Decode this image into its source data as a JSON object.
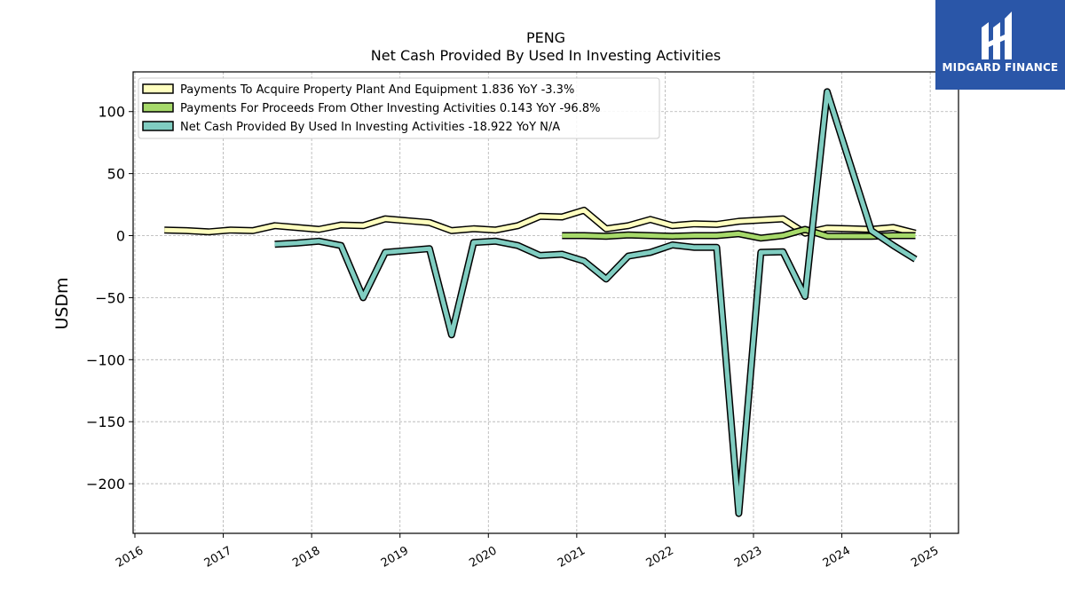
{
  "brand": {
    "name": "MIDGARD FINANCE",
    "bg_color": "#2a56a8"
  },
  "chart_data": {
    "type": "line",
    "title": "PENG",
    "subtitle": "Net Cash Provided By Used In Investing Activities",
    "ylabel": "USDm",
    "xlabel": "",
    "ylim": [
      -240,
      132
    ],
    "xlim": [
      2015.98,
      2025.32
    ],
    "yticks": [
      100,
      50,
      0,
      -50,
      -100,
      -150,
      -200
    ],
    "ytick_labels": [
      "100",
      "50",
      "0",
      "−50",
      "−100",
      "−150",
      "−200"
    ],
    "xticks": [
      "2016",
      "2017",
      "2018",
      "2019",
      "2020",
      "2021",
      "2022",
      "2023",
      "2024",
      "2025"
    ],
    "grid": true,
    "legend_position": "top-left",
    "series": [
      {
        "name": "Payments To Acquire Property Plant And Equipment",
        "legend_label": "Payments To Acquire Property Plant And Equipment  1.836 YoY -3.3%",
        "color": "#ffffbf",
        "points": [
          {
            "x": "2016-05",
            "y": 4.5
          },
          {
            "x": "2016-08",
            "y": 4.0
          },
          {
            "x": "2016-11",
            "y": 3.0
          },
          {
            "x": "2017-02",
            "y": 4.5
          },
          {
            "x": "2017-05",
            "y": 4.0
          },
          {
            "x": "2017-08",
            "y": 8.0
          },
          {
            "x": "2017-11",
            "y": 6.5
          },
          {
            "x": "2018-02",
            "y": 5.0
          },
          {
            "x": "2018-05",
            "y": 8.5
          },
          {
            "x": "2018-08",
            "y": 8.0
          },
          {
            "x": "2018-11",
            "y": 13.5
          },
          {
            "x": "2019-02",
            "y": 12.0
          },
          {
            "x": "2019-05",
            "y": 10.5
          },
          {
            "x": "2019-08",
            "y": 4.0
          },
          {
            "x": "2019-11",
            "y": 5.5
          },
          {
            "x": "2020-02",
            "y": 4.5
          },
          {
            "x": "2020-05",
            "y": 8.0
          },
          {
            "x": "2020-08",
            "y": 15.5
          },
          {
            "x": "2020-11",
            "y": 15.0
          },
          {
            "x": "2021-02",
            "y": 20.5
          },
          {
            "x": "2021-05",
            "y": 5.5
          },
          {
            "x": "2021-08",
            "y": 8.0
          },
          {
            "x": "2021-11",
            "y": 13.0
          },
          {
            "x": "2022-02",
            "y": 8.0
          },
          {
            "x": "2022-05",
            "y": 9.5
          },
          {
            "x": "2022-08",
            "y": 9.0
          },
          {
            "x": "2022-11",
            "y": 11.5
          },
          {
            "x": "2023-02",
            "y": 12.5
          },
          {
            "x": "2023-05",
            "y": 13.5
          },
          {
            "x": "2023-08",
            "y": 2.0
          },
          {
            "x": "2023-11",
            "y": 6.0
          },
          {
            "x": "2024-02",
            "y": 5.5
          },
          {
            "x": "2024-05",
            "y": 5.0
          },
          {
            "x": "2024-08",
            "y": 6.5
          },
          {
            "x": "2024-11",
            "y": 2.0
          }
        ]
      },
      {
        "name": "Payments For Proceeds From Other Investing Activities",
        "legend_label": "Payments For Proceeds From Other Investing Activities  0.143 YoY -96.8%",
        "color": "#a6d96a",
        "points": [
          {
            "x": "2020-11",
            "y": 0.0
          },
          {
            "x": "2021-02",
            "y": 0.0
          },
          {
            "x": "2021-05",
            "y": -0.5
          },
          {
            "x": "2021-08",
            "y": 0.5
          },
          {
            "x": "2021-11",
            "y": 0.0
          },
          {
            "x": "2022-02",
            "y": -0.5
          },
          {
            "x": "2022-05",
            "y": 0.0
          },
          {
            "x": "2022-08",
            "y": 0.0
          },
          {
            "x": "2022-11",
            "y": 1.5
          },
          {
            "x": "2023-02",
            "y": -2.0
          },
          {
            "x": "2023-05",
            "y": 0.0
          },
          {
            "x": "2023-08",
            "y": 5.0
          },
          {
            "x": "2023-11",
            "y": -0.5
          },
          {
            "x": "2024-02",
            "y": -0.5
          },
          {
            "x": "2024-05",
            "y": -0.5
          },
          {
            "x": "2024-08",
            "y": 0.0
          },
          {
            "x": "2024-11",
            "y": 0.0
          }
        ]
      },
      {
        "name": "Net Cash Provided By Used In Investing Activities",
        "legend_label": "Net Cash Provided By Used In Investing Activities  -18.922 YoY N/A",
        "color": "#80cdc1",
        "points": [
          {
            "x": "2017-08",
            "y": -7.0
          },
          {
            "x": "2017-11",
            "y": -6.0
          },
          {
            "x": "2018-02",
            "y": -4.5
          },
          {
            "x": "2018-05",
            "y": -8.0
          },
          {
            "x": "2018-08",
            "y": -50.0
          },
          {
            "x": "2018-11",
            "y": -13.5
          },
          {
            "x": "2019-02",
            "y": -12.0
          },
          {
            "x": "2019-05",
            "y": -10.5
          },
          {
            "x": "2019-08",
            "y": -80.0
          },
          {
            "x": "2019-11",
            "y": -5.5
          },
          {
            "x": "2020-02",
            "y": -4.5
          },
          {
            "x": "2020-05",
            "y": -8.0
          },
          {
            "x": "2020-08",
            "y": -16.0
          },
          {
            "x": "2020-11",
            "y": -15.0
          },
          {
            "x": "2021-02",
            "y": -20.5
          },
          {
            "x": "2021-05",
            "y": -35.0
          },
          {
            "x": "2021-08",
            "y": -16.5
          },
          {
            "x": "2021-11",
            "y": -13.5
          },
          {
            "x": "2022-02",
            "y": -7.5
          },
          {
            "x": "2022-05",
            "y": -9.5
          },
          {
            "x": "2022-08",
            "y": -9.5
          },
          {
            "x": "2022-11",
            "y": -224.0
          },
          {
            "x": "2023-02",
            "y": -13.5
          },
          {
            "x": "2023-05",
            "y": -13.0
          },
          {
            "x": "2023-08",
            "y": -49.0
          },
          {
            "x": "2023-11",
            "y": 116.0
          },
          {
            "x": "2024-05",
            "y": 4.0
          },
          {
            "x": "2024-08",
            "y": -8.0
          },
          {
            "x": "2024-11",
            "y": -19.0
          }
        ]
      }
    ]
  }
}
